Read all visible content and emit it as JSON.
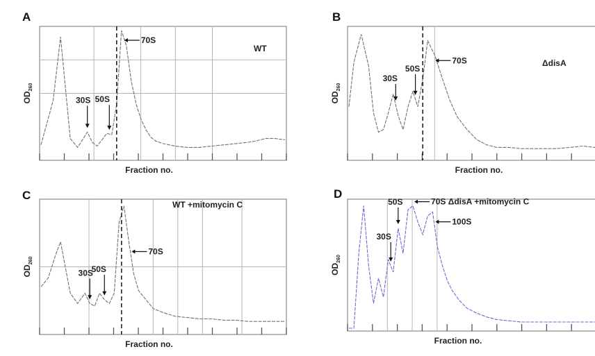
{
  "figure": {
    "x_axis_label": "Fraction no.",
    "y_axis_label_main": "OD",
    "y_axis_label_sub": "260"
  },
  "chart_data": [
    {
      "type": "line",
      "panel": "A",
      "condition": "WT",
      "xlabel": "Fraction no.",
      "ylabel": "OD260",
      "x": [
        0.0,
        0.05,
        0.08,
        0.1,
        0.12,
        0.15,
        0.17,
        0.19,
        0.21,
        0.23,
        0.25,
        0.27,
        0.29,
        0.31,
        0.33,
        0.35,
        0.37,
        0.39,
        0.41,
        0.43,
        0.45,
        0.47,
        0.5,
        0.55,
        0.6,
        0.65,
        0.7,
        0.75,
        0.8,
        0.85,
        0.88,
        0.92,
        0.96,
        1.0
      ],
      "y": [
        0.1,
        0.45,
        0.95,
        0.55,
        0.15,
        0.08,
        0.14,
        0.2,
        0.12,
        0.09,
        0.14,
        0.19,
        0.18,
        0.42,
        1.0,
        0.88,
        0.6,
        0.42,
        0.3,
        0.22,
        0.16,
        0.13,
        0.11,
        0.09,
        0.08,
        0.08,
        0.09,
        0.1,
        0.11,
        0.12,
        0.13,
        0.15,
        0.15,
        0.14
      ],
      "peak_labels": [
        {
          "label": "30S",
          "x": 0.19
        },
        {
          "label": "50S",
          "x": 0.28
        },
        {
          "label": "70S",
          "x": 0.33
        }
      ],
      "line_color": "#707070"
    },
    {
      "type": "line",
      "panel": "B",
      "condition": "ΔdisA",
      "xlabel": "Fraction no.",
      "ylabel": "OD260",
      "x": [
        0.0,
        0.02,
        0.05,
        0.08,
        0.1,
        0.12,
        0.14,
        0.16,
        0.18,
        0.2,
        0.22,
        0.24,
        0.26,
        0.28,
        0.3,
        0.32,
        0.35,
        0.38,
        0.41,
        0.44,
        0.48,
        0.52,
        0.56,
        0.6,
        0.65,
        0.7,
        0.75,
        0.8,
        0.84,
        0.9,
        0.95,
        1.0
      ],
      "y": [
        0.4,
        0.75,
        0.97,
        0.72,
        0.35,
        0.2,
        0.22,
        0.35,
        0.5,
        0.33,
        0.22,
        0.4,
        0.52,
        0.4,
        0.62,
        0.92,
        0.8,
        0.62,
        0.45,
        0.32,
        0.22,
        0.14,
        0.1,
        0.08,
        0.08,
        0.07,
        0.07,
        0.07,
        0.07,
        0.08,
        0.09,
        0.08
      ],
      "peak_labels": [
        {
          "label": "30S",
          "x": 0.19
        },
        {
          "label": "50S",
          "x": 0.27
        },
        {
          "label": "70S",
          "x": 0.34
        }
      ],
      "line_color": "#707070"
    },
    {
      "type": "line",
      "panel": "C",
      "condition": "WT +mitomycin C",
      "xlabel": "Fraction no.",
      "ylabel": "OD260",
      "x": [
        0.0,
        0.03,
        0.06,
        0.08,
        0.1,
        0.12,
        0.15,
        0.18,
        0.2,
        0.22,
        0.24,
        0.26,
        0.28,
        0.3,
        0.32,
        0.34,
        0.36,
        0.38,
        0.4,
        0.43,
        0.46,
        0.5,
        0.55,
        0.6,
        0.65,
        0.7,
        0.75,
        0.8,
        0.85,
        0.9,
        0.95,
        1.0
      ],
      "y": [
        0.35,
        0.42,
        0.6,
        0.7,
        0.5,
        0.3,
        0.22,
        0.3,
        0.22,
        0.2,
        0.3,
        0.25,
        0.22,
        0.3,
        0.85,
        0.98,
        0.7,
        0.45,
        0.32,
        0.25,
        0.18,
        0.15,
        0.12,
        0.11,
        0.1,
        0.1,
        0.09,
        0.09,
        0.08,
        0.08,
        0.08,
        0.08
      ],
      "peak_labels": [
        {
          "label": "30S",
          "x": 0.2
        },
        {
          "label": "50S",
          "x": 0.26
        },
        {
          "label": "70S",
          "x": 0.36
        }
      ],
      "line_color": "#707070"
    },
    {
      "type": "line",
      "panel": "D",
      "condition": "ΔdisA +mitomycin C",
      "xlabel": "Fraction no.",
      "ylabel": "OD260",
      "x": [
        0.0,
        0.02,
        0.04,
        0.06,
        0.08,
        0.1,
        0.12,
        0.14,
        0.16,
        0.18,
        0.2,
        0.22,
        0.24,
        0.26,
        0.28,
        0.3,
        0.32,
        0.34,
        0.36,
        0.38,
        0.4,
        0.42,
        0.45,
        0.48,
        0.52,
        0.56,
        0.6,
        0.65,
        0.7,
        0.75,
        0.8,
        0.85,
        0.9,
        0.95,
        1.0
      ],
      "y": [
        0.0,
        0.0,
        0.6,
        0.98,
        0.5,
        0.2,
        0.4,
        0.25,
        0.55,
        0.45,
        0.8,
        0.6,
        0.95,
        0.98,
        0.85,
        0.75,
        0.9,
        0.93,
        0.65,
        0.5,
        0.38,
        0.3,
        0.22,
        0.16,
        0.12,
        0.09,
        0.07,
        0.06,
        0.05,
        0.05,
        0.05,
        0.05,
        0.05,
        0.05,
        0.05
      ],
      "peak_labels": [
        {
          "label": "30S",
          "x": 0.17
        },
        {
          "label": "50S",
          "x": 0.2
        },
        {
          "label": "70S",
          "x": 0.26
        },
        {
          "label": "100S",
          "x": 0.34
        }
      ],
      "line_color": "#6b6bd8"
    }
  ]
}
